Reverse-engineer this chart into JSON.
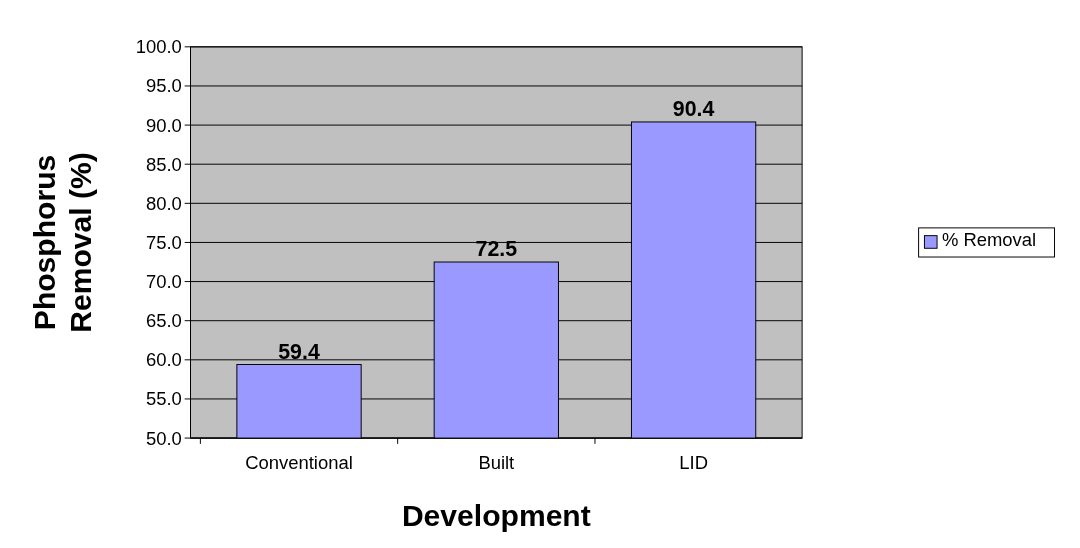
{
  "chart_data": {
    "type": "bar",
    "xlabel": "Development",
    "ylabel": "Phosphorus Removal (%)",
    "categories": [
      "Conventional",
      "Built",
      "LID"
    ],
    "series": [
      {
        "name": "% Removal",
        "color": "#9999ff",
        "values": [
          59.4,
          72.5,
          90.4
        ]
      }
    ],
    "ylim": [
      50,
      100
    ],
    "yticks": [
      {
        "value": 50,
        "label": "50.0"
      },
      {
        "value": 55,
        "label": "55.0"
      },
      {
        "value": 60,
        "label": "60.0"
      },
      {
        "value": 65,
        "label": "65.0"
      },
      {
        "value": 70,
        "label": "70.0"
      },
      {
        "value": 75,
        "label": "75.0"
      },
      {
        "value": 80,
        "label": "80.0"
      },
      {
        "value": 85,
        "label": "85.0"
      },
      {
        "value": 90,
        "label": "90.0"
      },
      {
        "value": 95,
        "label": "95.0"
      },
      {
        "value": 100,
        "label": "100.0"
      }
    ],
    "grid": "y",
    "legend": "right",
    "data_labels": true
  }
}
